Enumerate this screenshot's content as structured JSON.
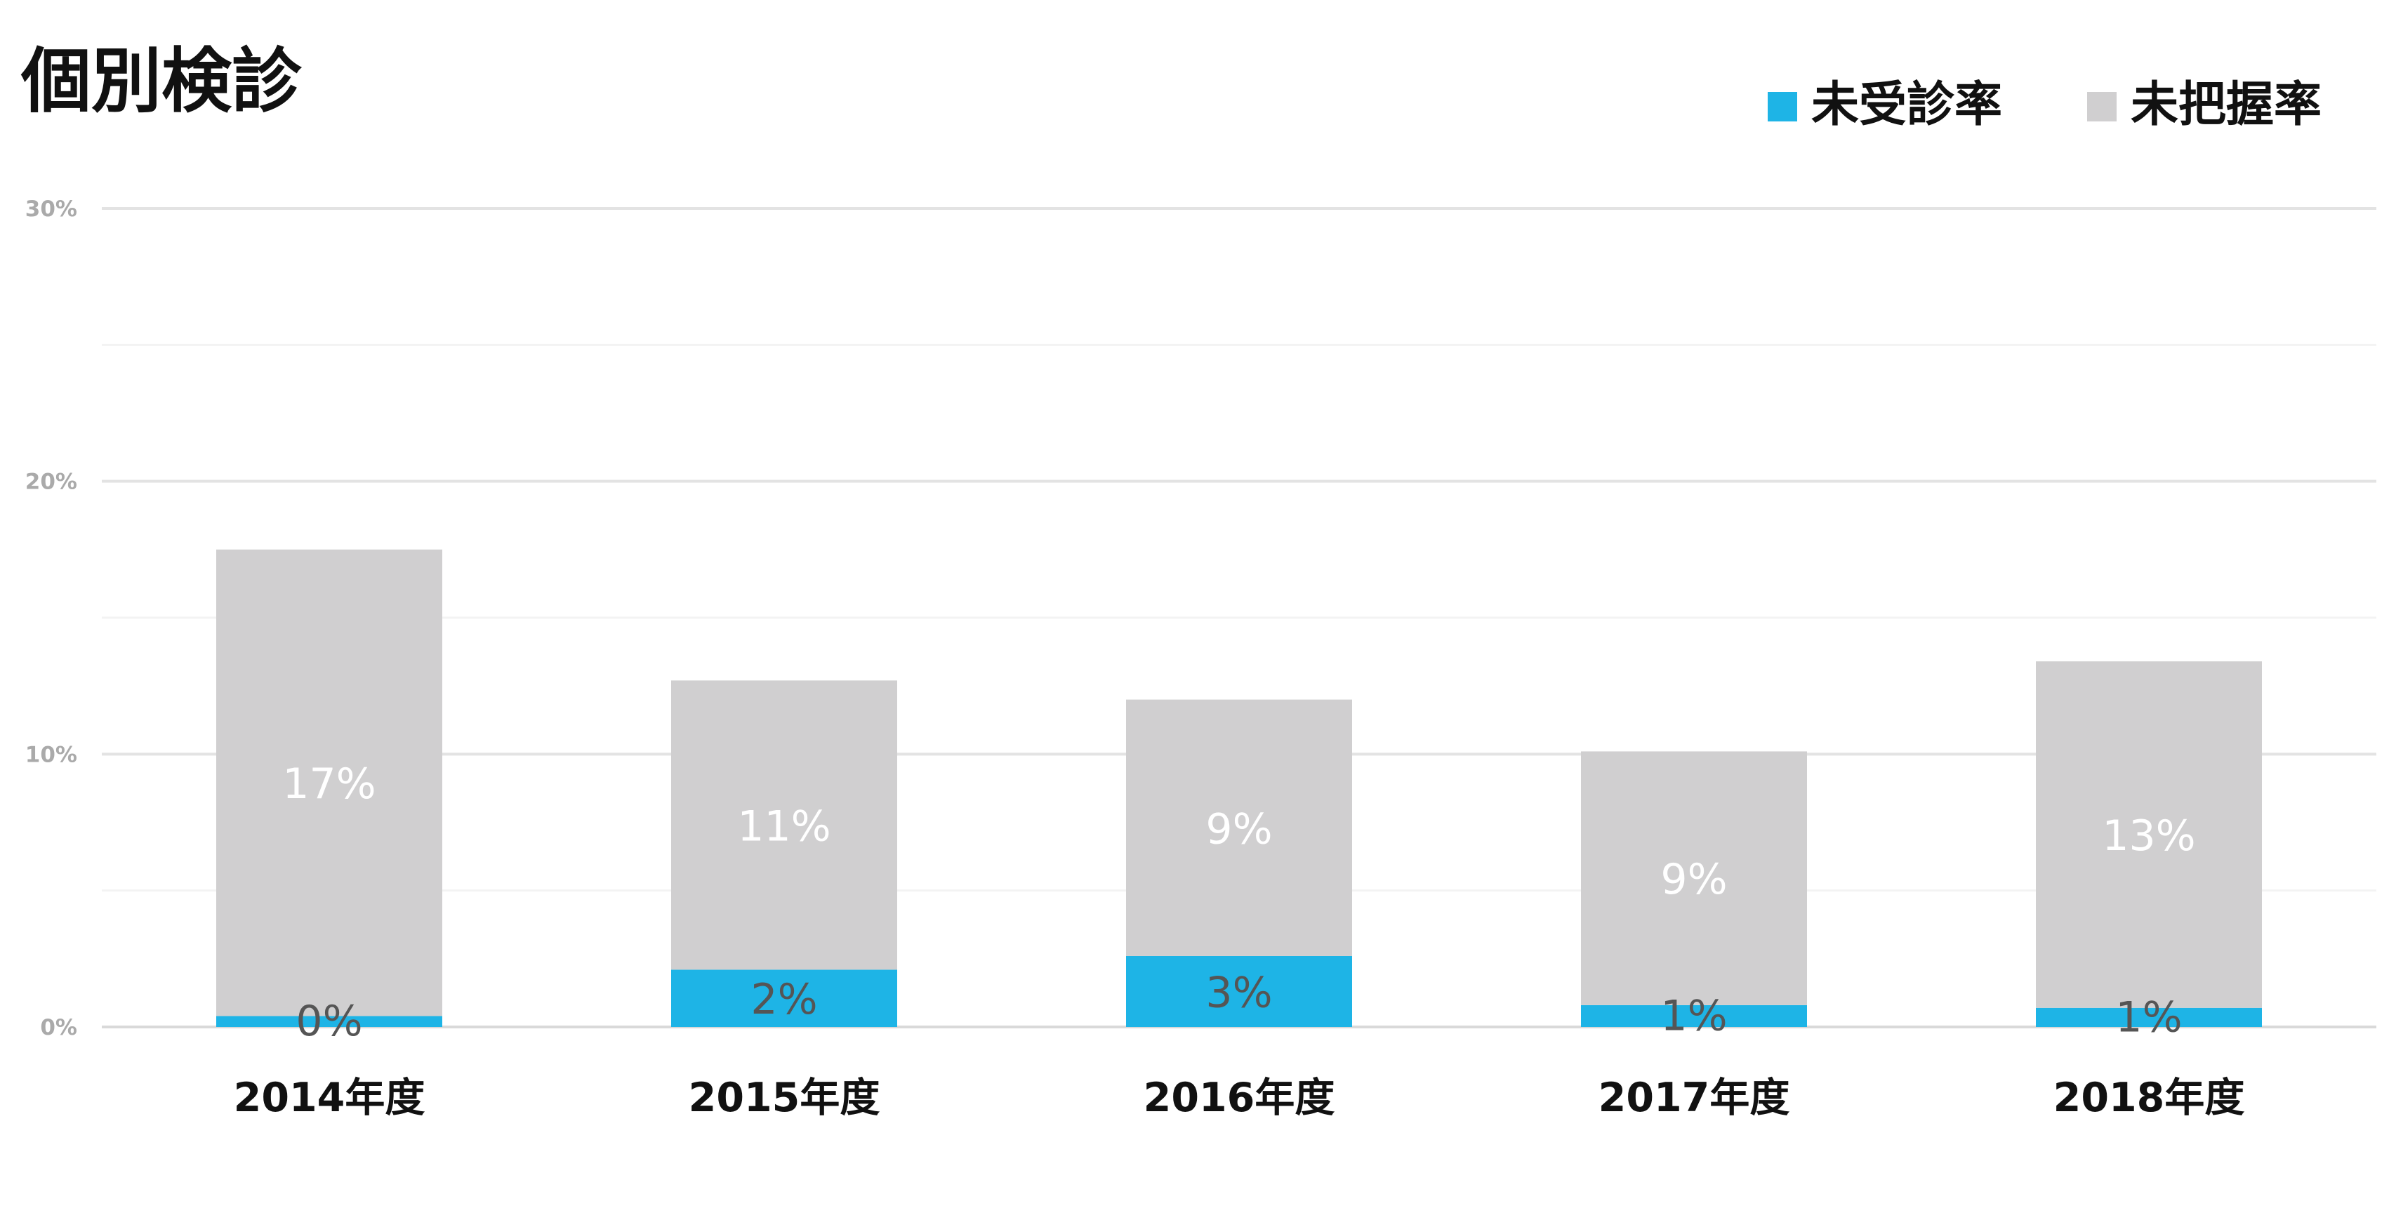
{
  "chart_data": {
    "type": "bar",
    "stacked": true,
    "title": "個別検診",
    "categories": [
      "2014年度",
      "2015年度",
      "2016年度",
      "2017年度",
      "2018年度"
    ],
    "series": [
      {
        "name": "未受診率",
        "color": "#1EB4E6",
        "values": [
          0.4,
          2.1,
          2.6,
          0.8,
          0.7
        ],
        "labels": [
          "0%",
          "2%",
          "3%",
          "1%",
          "1%"
        ],
        "label_color": "#555555"
      },
      {
        "name": "未把握率",
        "color": "#D0CFD0",
        "values": [
          17.1,
          10.6,
          9.4,
          9.3,
          12.7
        ],
        "labels": [
          "17%",
          "11%",
          "9%",
          "9%",
          "13%"
        ],
        "label_color": "#ffffff"
      }
    ],
    "ylim": [
      0,
      30
    ],
    "yticks": [
      "0%",
      "10%",
      "20%",
      "30%"
    ],
    "ytick_values": [
      0,
      10,
      20,
      30
    ],
    "xlabel": "",
    "ylabel": "",
    "grid": true,
    "legend_position": "top-right"
  }
}
